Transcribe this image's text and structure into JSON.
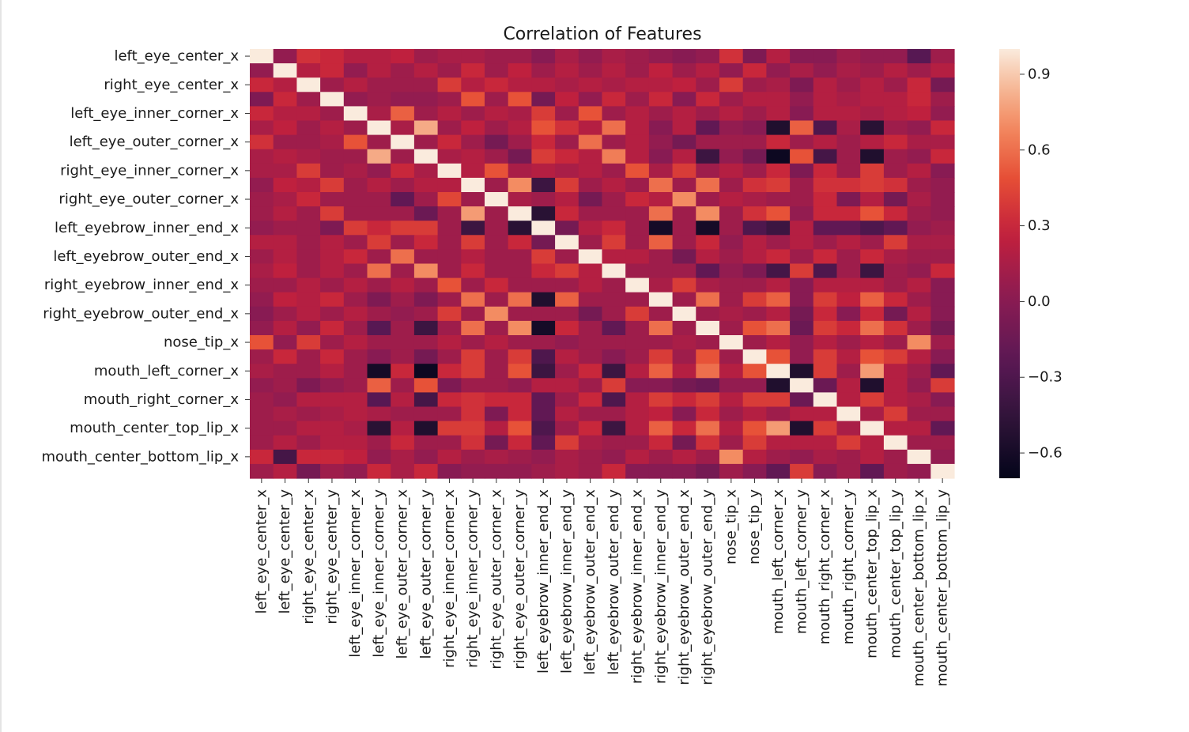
{
  "chart_data": {
    "type": "heatmap",
    "title": "Correlation of Features",
    "row_tick_labels": [
      "left_eye_center_x",
      "right_eye_center_x",
      "left_eye_inner_corner_x",
      "left_eye_outer_corner_x",
      "right_eye_inner_corner_x",
      "right_eye_outer_corner_x",
      "left_eyebrow_inner_end_x",
      "left_eyebrow_outer_end_x",
      "right_eyebrow_inner_end_x",
      "right_eyebrow_outer_end_x",
      "nose_tip_x",
      "mouth_left_corner_x",
      "mouth_right_corner_x",
      "mouth_center_top_lip_x",
      "mouth_center_bottom_lip_x"
    ],
    "columns": [
      "left_eye_center_x",
      "left_eye_center_y",
      "right_eye_center_x",
      "right_eye_center_y",
      "left_eye_inner_corner_x",
      "left_eye_inner_corner_y",
      "left_eye_outer_corner_x",
      "left_eye_outer_corner_y",
      "right_eye_inner_corner_x",
      "right_eye_inner_corner_y",
      "right_eye_outer_corner_x",
      "right_eye_outer_corner_y",
      "left_eyebrow_inner_end_x",
      "left_eyebrow_inner_end_y",
      "left_eyebrow_outer_end_x",
      "left_eyebrow_outer_end_y",
      "right_eyebrow_inner_end_x",
      "right_eyebrow_inner_end_y",
      "right_eyebrow_outer_end_x",
      "right_eyebrow_outer_end_y",
      "nose_tip_x",
      "nose_tip_y",
      "mouth_left_corner_x",
      "mouth_left_corner_y",
      "mouth_right_corner_x",
      "mouth_right_corner_y",
      "mouth_center_top_lip_x",
      "mouth_center_top_lip_y",
      "mouth_center_bottom_lip_x",
      "mouth_center_bottom_lip_y"
    ],
    "values": [
      [
        1.0,
        0.05,
        0.35,
        0.3,
        0.2,
        0.2,
        0.25,
        0.1,
        0.15,
        0.15,
        0.1,
        0.1,
        0.0,
        0.15,
        0.05,
        0.15,
        0.1,
        0.05,
        0.0,
        0.05,
        0.35,
        -0.05,
        0.2,
        0.0,
        0.0,
        0.1,
        0.05,
        0.05,
        -0.25,
        0.1
      ],
      [
        0.05,
        1.0,
        0.2,
        0.3,
        0.05,
        0.2,
        0.1,
        0.2,
        0.1,
        0.3,
        0.1,
        0.25,
        0.1,
        0.2,
        0.1,
        0.2,
        0.1,
        0.25,
        0.1,
        0.2,
        0.05,
        0.3,
        0.05,
        0.15,
        0.05,
        0.15,
        0.1,
        0.2,
        0.1,
        0.2
      ],
      [
        0.3,
        0.2,
        1.0,
        0.1,
        0.2,
        0.1,
        0.1,
        0.1,
        0.4,
        0.2,
        0.3,
        0.2,
        0.2,
        0.15,
        0.2,
        0.15,
        0.2,
        0.2,
        0.25,
        0.1,
        0.4,
        0.1,
        0.15,
        -0.05,
        0.2,
        0.1,
        0.2,
        0.1,
        0.3,
        -0.1
      ],
      [
        -0.05,
        0.3,
        0.1,
        1.0,
        0.05,
        0.1,
        0.05,
        0.05,
        0.1,
        0.5,
        0.1,
        0.5,
        -0.1,
        0.25,
        0.05,
        0.3,
        0.1,
        0.3,
        0.0,
        0.3,
        0.1,
        0.2,
        0.2,
        0.05,
        0.2,
        0.15,
        0.2,
        0.2,
        0.3,
        0.1
      ],
      [
        0.3,
        0.2,
        0.2,
        0.1,
        1.0,
        0.15,
        0.55,
        0.1,
        0.2,
        0.1,
        0.2,
        0.15,
        0.4,
        0.1,
        0.5,
        0.1,
        0.2,
        0.1,
        0.2,
        0.1,
        0.2,
        0.1,
        0.2,
        0.0,
        0.2,
        0.2,
        0.15,
        0.2,
        0.25,
        0.05
      ],
      [
        0.15,
        0.25,
        0.1,
        0.2,
        0.1,
        1.0,
        0.15,
        0.8,
        0.1,
        0.25,
        0.1,
        0.2,
        0.5,
        0.35,
        0.2,
        0.6,
        0.2,
        0.0,
        0.2,
        -0.2,
        0.05,
        0.0,
        -0.55,
        0.55,
        -0.3,
        0.15,
        -0.5,
        0.1,
        0.05,
        0.3
      ],
      [
        0.35,
        0.1,
        0.1,
        0.15,
        0.5,
        0.1,
        1.0,
        0.1,
        0.3,
        0.1,
        -0.1,
        0.1,
        0.3,
        0.1,
        0.6,
        0.1,
        0.2,
        0.05,
        -0.1,
        0.1,
        0.1,
        0.1,
        0.3,
        0.1,
        0.2,
        0.1,
        0.2,
        0.3,
        0.15,
        0.15
      ],
      [
        0.15,
        0.2,
        0.15,
        0.1,
        0.1,
        0.8,
        0.1,
        1.0,
        0.15,
        0.2,
        0.1,
        -0.1,
        0.4,
        0.3,
        0.2,
        0.65,
        0.2,
        0.0,
        0.2,
        -0.4,
        0.05,
        -0.1,
        -0.65,
        0.5,
        -0.35,
        0.1,
        -0.55,
        0.1,
        0.05,
        0.3
      ],
      [
        0.15,
        0.15,
        0.4,
        0.1,
        0.15,
        0.05,
        0.3,
        0.15,
        1.0,
        0.2,
        0.5,
        0.15,
        0.2,
        0.15,
        0.2,
        0.1,
        0.5,
        0.15,
        0.4,
        0.1,
        0.2,
        0.1,
        0.3,
        -0.05,
        0.3,
        0.1,
        0.4,
        0.1,
        0.2,
        0.0
      ],
      [
        0.05,
        0.25,
        0.2,
        0.4,
        0.1,
        0.2,
        0.1,
        0.2,
        0.2,
        1.0,
        0.1,
        0.7,
        -0.4,
        0.4,
        0.1,
        0.2,
        0.1,
        0.6,
        0.1,
        0.6,
        0.1,
        0.35,
        0.4,
        0.1,
        0.35,
        0.35,
        0.4,
        0.35,
        0.1,
        0.05
      ],
      [
        0.1,
        0.15,
        0.3,
        0.1,
        0.1,
        0.1,
        -0.2,
        0.1,
        0.45,
        0.1,
        1.0,
        0.15,
        0.1,
        0.2,
        -0.1,
        0.1,
        0.3,
        0.2,
        0.7,
        0.1,
        0.2,
        0.15,
        0.1,
        0.1,
        0.3,
        -0.05,
        0.2,
        -0.1,
        0.15,
        0.05
      ],
      [
        0.1,
        0.2,
        0.1,
        0.4,
        0.1,
        0.1,
        0.1,
        -0.15,
        0.1,
        0.75,
        0.1,
        1.0,
        -0.5,
        0.3,
        0.1,
        0.1,
        0.1,
        0.6,
        0.1,
        0.7,
        0.1,
        0.35,
        0.5,
        0.05,
        0.3,
        0.3,
        0.5,
        0.3,
        0.1,
        0.05
      ],
      [
        0.05,
        0.1,
        0.1,
        -0.05,
        0.4,
        0.3,
        0.4,
        0.4,
        0.1,
        -0.4,
        0.1,
        -0.5,
        1.0,
        -0.1,
        0.2,
        0.3,
        0.1,
        -0.6,
        0.1,
        -0.6,
        0.1,
        -0.3,
        -0.4,
        0.2,
        -0.2,
        -0.2,
        -0.3,
        -0.2,
        0.05,
        0.1
      ],
      [
        0.2,
        0.2,
        0.1,
        0.2,
        0.1,
        0.4,
        0.1,
        0.3,
        0.1,
        0.4,
        0.1,
        0.3,
        -0.1,
        1.0,
        0.1,
        0.4,
        0.1,
        0.55,
        0.1,
        0.3,
        0.05,
        0.2,
        0.1,
        0.2,
        0.1,
        0.2,
        0.1,
        0.4,
        0.15,
        0.15
      ],
      [
        0.1,
        0.2,
        0.1,
        0.2,
        0.3,
        0.1,
        0.6,
        0.1,
        0.1,
        0.2,
        0.1,
        0.1,
        0.4,
        0.1,
        1.0,
        0.2,
        0.2,
        0.1,
        -0.1,
        0.2,
        0.1,
        0.2,
        0.3,
        0.1,
        0.3,
        0.1,
        0.3,
        0.15,
        0.1,
        0.1
      ],
      [
        0.15,
        0.25,
        0.1,
        0.2,
        0.1,
        0.6,
        0.1,
        0.7,
        0.1,
        0.3,
        0.1,
        0.1,
        0.3,
        0.4,
        0.2,
        1.0,
        0.1,
        0.1,
        0.1,
        -0.2,
        0.05,
        -0.05,
        -0.35,
        0.4,
        -0.3,
        0.1,
        -0.4,
        0.1,
        0.05,
        0.3
      ],
      [
        0.1,
        0.1,
        0.2,
        0.1,
        0.2,
        0.1,
        0.2,
        0.1,
        0.5,
        0.1,
        0.3,
        0.1,
        0.1,
        0.1,
        0.2,
        0.1,
        1.0,
        0.15,
        0.4,
        0.15,
        0.1,
        0.1,
        0.2,
        0.0,
        0.2,
        0.2,
        0.2,
        0.1,
        0.2,
        0.0
      ],
      [
        0.05,
        0.25,
        0.2,
        0.3,
        0.1,
        -0.05,
        0.1,
        -0.05,
        0.1,
        0.6,
        0.1,
        0.6,
        -0.55,
        0.55,
        0.1,
        0.1,
        0.1,
        1.0,
        0.1,
        0.6,
        0.1,
        0.4,
        0.55,
        0.0,
        0.4,
        0.25,
        0.55,
        0.3,
        0.1,
        0.0
      ],
      [
        0.0,
        0.1,
        0.2,
        0.1,
        0.2,
        0.1,
        0.05,
        0.1,
        0.4,
        0.1,
        0.7,
        0.1,
        0.1,
        0.1,
        -0.1,
        0.1,
        0.4,
        0.1,
        1.0,
        0.1,
        0.15,
        0.1,
        0.2,
        -0.1,
        0.3,
        0.0,
        0.3,
        -0.1,
        0.2,
        0.0
      ],
      [
        0.05,
        0.2,
        0.05,
        0.3,
        0.1,
        -0.25,
        0.1,
        -0.4,
        0.1,
        0.6,
        0.1,
        0.7,
        -0.6,
        0.3,
        0.1,
        -0.2,
        0.1,
        0.6,
        0.1,
        1.0,
        0.1,
        0.5,
        0.6,
        -0.15,
        0.4,
        0.3,
        0.6,
        0.35,
        0.1,
        -0.1
      ],
      [
        0.5,
        0.05,
        0.4,
        0.1,
        0.2,
        0.1,
        0.1,
        0.1,
        0.2,
        0.1,
        0.2,
        0.1,
        0.1,
        0.05,
        0.1,
        0.1,
        0.1,
        0.1,
        0.15,
        0.1,
        1.0,
        0.1,
        0.2,
        0.05,
        0.2,
        0.1,
        0.2,
        0.1,
        0.7,
        0.1
      ],
      [
        0.1,
        0.3,
        0.1,
        0.3,
        0.1,
        0.0,
        0.1,
        -0.1,
        0.1,
        0.4,
        0.1,
        0.4,
        -0.3,
        0.2,
        0.1,
        0.0,
        0.1,
        0.4,
        0.1,
        0.5,
        0.1,
        1.0,
        0.5,
        0.05,
        0.4,
        0.2,
        0.5,
        0.4,
        0.2,
        0.0
      ],
      [
        0.15,
        0.1,
        0.1,
        0.2,
        0.1,
        -0.6,
        0.3,
        -0.65,
        0.3,
        0.4,
        0.1,
        0.5,
        -0.4,
        0.1,
        0.3,
        -0.4,
        0.2,
        0.55,
        0.2,
        0.6,
        0.2,
        0.5,
        1.0,
        -0.55,
        0.4,
        0.1,
        0.75,
        0.2,
        0.1,
        -0.2
      ],
      [
        0.05,
        0.1,
        -0.05,
        0.05,
        0.1,
        0.55,
        0.1,
        0.5,
        -0.05,
        0.1,
        0.1,
        0.05,
        0.2,
        0.2,
        0.1,
        0.4,
        0.0,
        0.0,
        -0.1,
        -0.15,
        0.05,
        0.05,
        -0.55,
        1.0,
        -0.15,
        0.2,
        -0.55,
        0.2,
        0.05,
        0.4
      ],
      [
        0.1,
        0.05,
        0.2,
        0.2,
        0.2,
        -0.25,
        0.2,
        -0.35,
        0.3,
        0.35,
        0.3,
        0.3,
        -0.2,
        0.1,
        0.3,
        -0.3,
        0.2,
        0.4,
        0.3,
        0.4,
        0.2,
        0.4,
        0.4,
        -0.15,
        1.0,
        0.2,
        0.4,
        0.2,
        0.15,
        0.0
      ],
      [
        0.1,
        0.15,
        0.1,
        0.15,
        0.2,
        0.15,
        0.1,
        0.1,
        0.1,
        0.35,
        -0.05,
        0.3,
        -0.2,
        0.2,
        0.1,
        0.1,
        0.2,
        0.25,
        0.0,
        0.3,
        0.1,
        0.2,
        0.1,
        0.2,
        0.2,
        1.0,
        0.15,
        0.4,
        0.1,
        0.1
      ],
      [
        0.1,
        0.1,
        0.2,
        0.2,
        0.15,
        -0.5,
        0.2,
        -0.55,
        0.4,
        0.4,
        0.2,
        0.5,
        -0.3,
        0.1,
        0.3,
        -0.4,
        0.2,
        0.55,
        0.3,
        0.6,
        0.2,
        0.5,
        0.75,
        -0.55,
        0.4,
        0.15,
        1.0,
        0.2,
        0.2,
        -0.2
      ],
      [
        0.1,
        0.2,
        0.1,
        0.2,
        0.2,
        0.1,
        0.3,
        0.1,
        0.1,
        0.35,
        -0.1,
        0.3,
        -0.2,
        0.4,
        0.15,
        0.1,
        0.1,
        0.3,
        -0.1,
        0.35,
        0.1,
        0.4,
        0.2,
        0.2,
        0.2,
        0.4,
        0.2,
        1.0,
        0.1,
        0.1
      ],
      [
        0.3,
        -0.35,
        0.3,
        0.3,
        0.25,
        0.05,
        0.15,
        0.05,
        0.2,
        0.1,
        0.15,
        0.1,
        0.05,
        0.15,
        0.1,
        0.05,
        0.2,
        0.1,
        0.2,
        0.1,
        0.7,
        0.2,
        0.1,
        0.05,
        0.15,
        0.1,
        0.2,
        0.1,
        1.0,
        0.05
      ],
      [
        0.1,
        0.2,
        -0.1,
        0.1,
        0.05,
        0.3,
        0.15,
        0.3,
        0.0,
        0.05,
        0.05,
        0.05,
        0.1,
        0.15,
        0.1,
        0.3,
        0.0,
        0.0,
        0.0,
        -0.1,
        0.1,
        0.0,
        -0.2,
        0.4,
        0.0,
        0.1,
        -0.2,
        0.1,
        0.05,
        1.0
      ]
    ],
    "colorbar": {
      "ticks": [
        -0.6,
        -0.3,
        0.0,
        0.3,
        0.6,
        0.9
      ],
      "tick_labels": [
        "−0.6",
        "−0.3",
        "0.0",
        "0.3",
        "0.6",
        "0.9"
      ],
      "vmin": -0.7,
      "vmax": 1.0,
      "colormap": "rocket"
    }
  }
}
